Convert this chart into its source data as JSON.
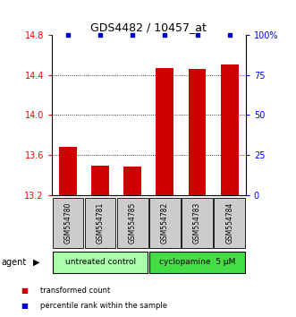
{
  "title": "GDS4482 / 10457_at",
  "samples": [
    "GSM554780",
    "GSM554781",
    "GSM554785",
    "GSM554782",
    "GSM554783",
    "GSM554784"
  ],
  "red_values": [
    13.68,
    13.49,
    13.48,
    14.47,
    14.46,
    14.5
  ],
  "blue_values": [
    100,
    100,
    100,
    100,
    100,
    100
  ],
  "ylim_left": [
    13.2,
    14.8
  ],
  "ylim_right": [
    0,
    100
  ],
  "yticks_left": [
    13.2,
    13.6,
    14.0,
    14.4,
    14.8
  ],
  "yticks_right": [
    0,
    25,
    50,
    75,
    100
  ],
  "ytick_labels_right": [
    "0",
    "25",
    "50",
    "75",
    "100%"
  ],
  "grid_lines": [
    13.6,
    14.0,
    14.4
  ],
  "agent_label": "agent",
  "bar_color": "#CC0000",
  "blue_dot_color": "#0000CC",
  "background_color": "#FFFFFF",
  "plot_bg": "#FFFFFF",
  "sample_bg": "#CCCCCC",
  "group1_color": "#AAFFAA",
  "group2_color": "#44DD44",
  "group1_label": "untreated control",
  "group2_label": "cyclopamine  5 μM",
  "legend_red": "transformed count",
  "legend_blue": "percentile rank within the sample"
}
